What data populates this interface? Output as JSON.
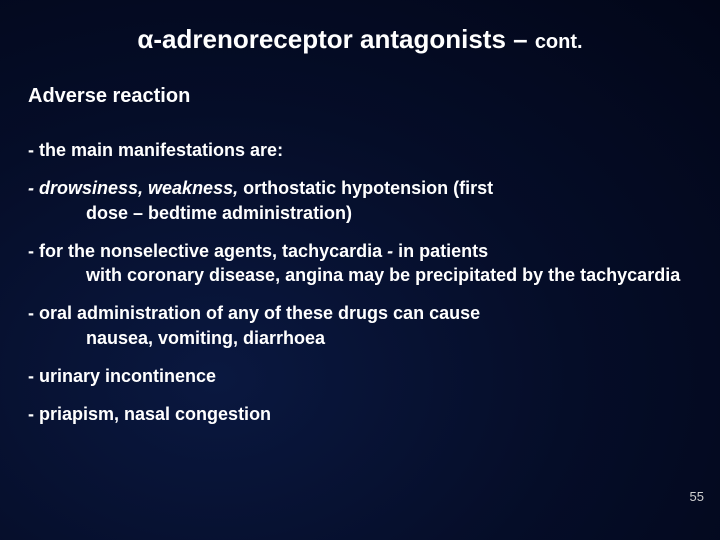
{
  "title_main": "α-adrenoreceptor antagonists – ",
  "title_cont": "cont.",
  "subheading": "Adverse reaction",
  "item1": "- the main manifestations are:",
  "item2_a": "- drowsiness, weakness,",
  "item2_b": " orthostatic hypotension (first",
  "item2_c": "dose – bedtime administration)",
  "item3_a": "- for the nonselective agents,  tachycardia ",
  "item3_b": "-",
  "item3_c": " in patients",
  "item3_d": "with coronary disease, angina may be precipitated by the tachycardia",
  "item4_a": "- oral administration of any of these drugs can cause",
  "item4_b": "nausea, vomiting, diarrhoea",
  "item5": "- urinary incontinence",
  "item6": "- priapism, nasal congestion",
  "page_num": "55",
  "colors": {
    "background_dark": "#020618",
    "background_mid": "#050d28",
    "background_light": "#0a1840",
    "text": "#ffffff",
    "page_num": "#d0d0d0"
  },
  "fonts": {
    "title_size": 26,
    "cont_size": 20,
    "subheading_size": 20,
    "body_size": 18,
    "page_num_size": 13,
    "weight": "bold"
  }
}
